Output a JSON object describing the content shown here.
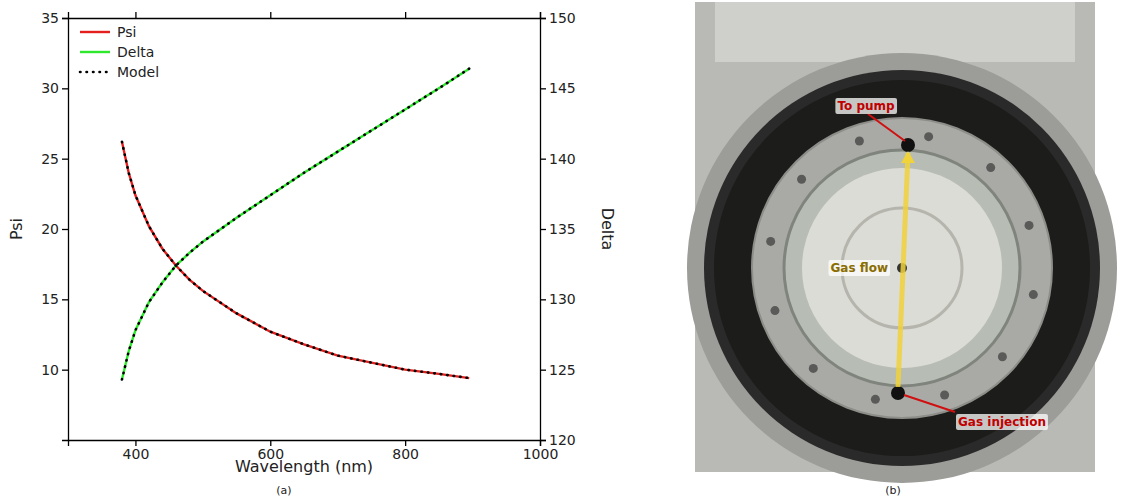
{
  "chart_data": {
    "type": "line",
    "caption": "(a)",
    "x_label": "Wavelength (nm)",
    "y_label": "Psi",
    "y2_label": "Delta",
    "x": [
      380,
      390,
      400,
      420,
      440,
      460,
      480,
      500,
      550,
      600,
      650,
      700,
      750,
      800,
      850,
      895
    ],
    "series": [
      {
        "name": "Psi",
        "color": "#e3201e",
        "line_style": "solid",
        "values": [
          26.2,
          24.0,
          22.4,
          20.2,
          18.6,
          17.4,
          16.4,
          15.6,
          14.0,
          12.7,
          11.8,
          11.0,
          10.5,
          10.0,
          9.7,
          9.4
        ]
      },
      {
        "name": "Delta",
        "color": "#2ee82e",
        "line_style": "solid",
        "axis": "y2",
        "values": [
          124.3,
          126.3,
          127.8,
          129.8,
          131.2,
          132.4,
          133.3,
          134.1,
          135.8,
          137.4,
          139.0,
          140.5,
          142.0,
          143.5,
          145.0,
          146.4
        ]
      },
      {
        "name": "Model",
        "color": "#000000",
        "line_style": "dotted",
        "values": [
          26.2,
          24.0,
          22.4,
          20.2,
          18.6,
          17.4,
          16.4,
          15.6,
          14.0,
          12.7,
          11.8,
          11.0,
          10.5,
          10.0,
          9.7,
          9.4
        ]
      },
      {
        "name": "Model",
        "color": "#000000",
        "line_style": "dotted",
        "axis": "y2",
        "values": [
          124.3,
          126.3,
          127.8,
          129.8,
          131.2,
          132.4,
          133.3,
          134.1,
          135.8,
          137.4,
          139.0,
          140.5,
          142.0,
          143.5,
          145.0,
          146.4
        ]
      }
    ],
    "xlim": [
      300,
      1000
    ],
    "xticks": [
      400,
      600,
      800,
      1000
    ],
    "ylim": [
      5,
      35
    ],
    "yticks": [
      10,
      15,
      20,
      25,
      30,
      35
    ],
    "y2lim": [
      120,
      150
    ],
    "y2ticks": [
      120,
      125,
      130,
      135,
      140,
      145,
      150
    ],
    "legend": "upper left"
  },
  "photo": {
    "caption": "(b)",
    "labels": [
      "To pump",
      "Gas flow",
      "Gas injection"
    ]
  }
}
